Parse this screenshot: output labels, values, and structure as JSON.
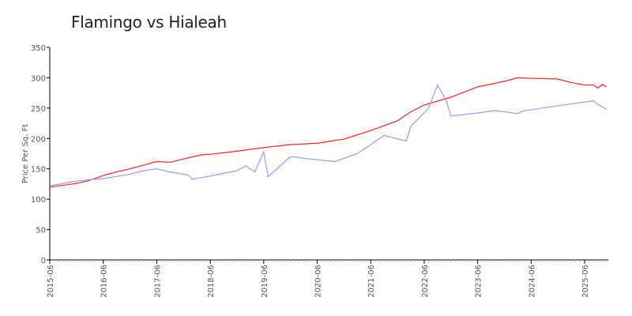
{
  "chart_data": {
    "type": "line",
    "title": "Flamingo vs Hialeah",
    "xlabel": "",
    "ylabel": "Price Per Sq. Ft",
    "ylim": [
      0,
      350
    ],
    "yticks": [
      "0",
      "50",
      "100",
      "150",
      "200",
      "250",
      "300",
      "350"
    ],
    "xticks": [
      "2015-06",
      "2016-06",
      "2017-06",
      "2018-06",
      "2019-06",
      "2020-06",
      "2021-06",
      "2022-06",
      "2023-06",
      "2024-06",
      "2025-06"
    ],
    "xlim": [
      "2015-06",
      "2025-11"
    ],
    "grid": false,
    "legend": "none",
    "series": [
      {
        "color": "#ff2020",
        "points": [
          [
            "2015-06",
            120
          ],
          [
            "2015-12",
            126
          ],
          [
            "2016-03",
            131
          ],
          [
            "2016-06",
            139
          ],
          [
            "2016-09",
            145
          ],
          [
            "2016-12",
            150
          ],
          [
            "2017-03",
            156
          ],
          [
            "2017-06",
            162
          ],
          [
            "2017-09",
            161
          ],
          [
            "2018-01",
            168
          ],
          [
            "2018-04",
            173
          ],
          [
            "2018-06",
            174
          ],
          [
            "2018-12",
            179
          ],
          [
            "2019-06",
            185
          ],
          [
            "2019-12",
            190
          ],
          [
            "2020-06",
            192
          ],
          [
            "2020-12",
            199
          ],
          [
            "2021-06",
            213
          ],
          [
            "2021-12",
            229
          ],
          [
            "2022-03",
            244
          ],
          [
            "2022-06",
            255
          ],
          [
            "2022-12",
            268
          ],
          [
            "2023-06",
            285
          ],
          [
            "2023-12",
            294
          ],
          [
            "2024-03",
            300
          ],
          [
            "2024-06",
            299
          ],
          [
            "2024-12",
            298
          ],
          [
            "2025-03",
            292
          ],
          [
            "2025-06",
            288
          ],
          [
            "2025-08",
            288
          ],
          [
            "2025-09",
            283
          ],
          [
            "2025-10",
            289
          ],
          [
            "2025-11",
            285
          ]
        ]
      },
      {
        "color": "#9999ff",
        "points": [
          [
            "2015-06",
            122
          ],
          [
            "2015-12",
            130
          ],
          [
            "2016-06",
            134
          ],
          [
            "2016-12",
            141
          ],
          [
            "2017-03",
            147
          ],
          [
            "2017-06",
            150
          ],
          [
            "2017-09",
            145
          ],
          [
            "2018-01",
            140
          ],
          [
            "2018-02",
            133
          ],
          [
            "2018-06",
            138
          ],
          [
            "2018-12",
            147
          ],
          [
            "2019-02",
            155
          ],
          [
            "2019-04",
            145
          ],
          [
            "2019-06",
            178
          ],
          [
            "2019-07",
            137
          ],
          [
            "2019-12",
            170
          ],
          [
            "2020-06",
            165
          ],
          [
            "2020-10",
            162
          ],
          [
            "2021-03",
            175
          ],
          [
            "2021-06",
            190
          ],
          [
            "2021-09",
            205
          ],
          [
            "2022-02",
            196
          ],
          [
            "2022-03",
            220
          ],
          [
            "2022-07",
            250
          ],
          [
            "2022-09",
            288
          ],
          [
            "2022-11",
            262
          ],
          [
            "2022-12",
            237
          ],
          [
            "2023-06",
            242
          ],
          [
            "2023-10",
            246
          ],
          [
            "2024-03",
            241
          ],
          [
            "2024-04",
            245
          ],
          [
            "2024-12",
            254
          ],
          [
            "2025-06",
            260
          ],
          [
            "2025-08",
            262
          ],
          [
            "2025-09",
            256
          ],
          [
            "2025-11",
            248
          ]
        ]
      }
    ]
  }
}
